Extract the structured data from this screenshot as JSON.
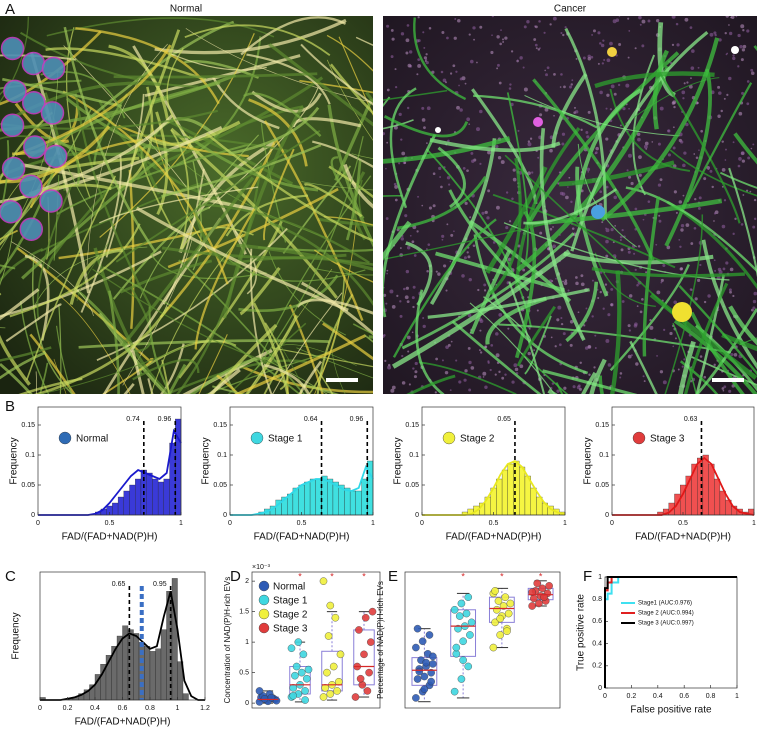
{
  "panel_labels": [
    "A",
    "B",
    "C",
    "D",
    "E",
    "F"
  ],
  "image_titles": [
    "Normal",
    "Cancer"
  ],
  "chart_data": [
    {
      "type": "histogram",
      "name": "Normal",
      "legend_color": "#2e6bb5",
      "color": "#3a3ad8",
      "fit_color": "#1a1acc",
      "xlabel": "FAD/(FAD+NAD(P)H)",
      "ylabel": "Frequency",
      "xlim": [
        0,
        1
      ],
      "xticks": [
        0,
        0.5,
        1
      ],
      "ylim": [
        0,
        0.18
      ],
      "yticks": [
        0,
        0.05,
        0.1,
        0.15
      ],
      "bins": [
        0,
        0.04,
        0.08,
        0.12,
        0.16,
        0.2,
        0.24,
        0.28,
        0.32,
        0.36,
        0.4,
        0.44,
        0.48,
        0.52,
        0.56,
        0.6,
        0.64,
        0.68,
        0.72,
        0.76,
        0.8,
        0.84,
        0.88,
        0.92,
        0.96,
        1
      ],
      "values": [
        0,
        0,
        0,
        0,
        0,
        0,
        0,
        0,
        0,
        0,
        0.005,
        0.01,
        0.015,
        0.02,
        0.03,
        0.04,
        0.05,
        0.06,
        0.075,
        0.07,
        0.06,
        0.055,
        0.06,
        0.12,
        0.16
      ],
      "fit": {
        "x": [
          0,
          0.05,
          0.1,
          0.15,
          0.2,
          0.25,
          0.3,
          0.35,
          0.4,
          0.45,
          0.5,
          0.55,
          0.6,
          0.65,
          0.7,
          0.75,
          0.8,
          0.85,
          0.9,
          0.95,
          1
        ],
        "values": [
          0,
          0,
          0,
          0,
          0,
          0,
          0,
          0,
          0.002,
          0.008,
          0.02,
          0.035,
          0.05,
          0.065,
          0.075,
          0.07,
          0.065,
          0.06,
          0.07,
          0.14,
          0.12
        ]
      },
      "marker_lines": [
        {
          "value": 0.74,
          "label": "0.74"
        },
        {
          "value": 0.96,
          "label": "0.96"
        }
      ]
    },
    {
      "type": "histogram",
      "name": "Stage 1",
      "legend_color": "#3fd7e0",
      "color": "#40e0e0",
      "fit_color": "#2fd8e8",
      "xlabel": "FAD/(FAD+NAD(P)H)",
      "ylabel": "Frequency",
      "xlim": [
        0,
        1
      ],
      "xticks": [
        0,
        0.5,
        1
      ],
      "ylim": [
        0,
        0.18
      ],
      "yticks": [
        0,
        0.05,
        0.1,
        0.15
      ],
      "bins": [
        0,
        0.04,
        0.08,
        0.12,
        0.16,
        0.2,
        0.24,
        0.28,
        0.32,
        0.36,
        0.4,
        0.44,
        0.48,
        0.52,
        0.56,
        0.6,
        0.64,
        0.68,
        0.72,
        0.76,
        0.8,
        0.84,
        0.88,
        0.92,
        0.96,
        1
      ],
      "values": [
        0,
        0,
        0,
        0,
        0,
        0.005,
        0.01,
        0.015,
        0.025,
        0.03,
        0.035,
        0.045,
        0.05,
        0.055,
        0.06,
        0.06,
        0.065,
        0.06,
        0.055,
        0.05,
        0.045,
        0.04,
        0.04,
        0.06,
        0.09
      ],
      "fit": {
        "x": [
          0,
          0.05,
          0.1,
          0.15,
          0.2,
          0.25,
          0.3,
          0.35,
          0.4,
          0.45,
          0.5,
          0.55,
          0.6,
          0.65,
          0.7,
          0.75,
          0.8,
          0.85,
          0.9,
          0.95,
          1
        ],
        "values": [
          0,
          0,
          0,
          0,
          0.002,
          0.005,
          0.01,
          0.02,
          0.03,
          0.04,
          0.05,
          0.055,
          0.06,
          0.06,
          0.055,
          0.048,
          0.042,
          0.04,
          0.045,
          0.08,
          0.06
        ]
      },
      "marker_lines": [
        {
          "value": 0.64,
          "label": "0.64"
        },
        {
          "value": 0.96,
          "label": "0.96"
        }
      ]
    },
    {
      "type": "histogram",
      "name": "Stage 2",
      "legend_color": "#f0f03c",
      "color": "#f5f542",
      "fit_color": "#e8e820",
      "xlabel": "FAD/(FAD+NAD(P)H)",
      "ylabel": "Frequency",
      "xlim": [
        0,
        1
      ],
      "xticks": [
        0,
        0.5,
        1
      ],
      "ylim": [
        0,
        0.18
      ],
      "yticks": [
        0,
        0.05,
        0.1,
        0.15
      ],
      "bins": [
        0,
        0.04,
        0.08,
        0.12,
        0.16,
        0.2,
        0.24,
        0.28,
        0.32,
        0.36,
        0.4,
        0.44,
        0.48,
        0.52,
        0.56,
        0.6,
        0.64,
        0.68,
        0.72,
        0.76,
        0.8,
        0.84,
        0.88,
        0.92,
        0.96,
        1
      ],
      "values": [
        0,
        0,
        0,
        0,
        0,
        0,
        0,
        0.005,
        0.01,
        0.015,
        0.02,
        0.03,
        0.045,
        0.06,
        0.075,
        0.085,
        0.09,
        0.08,
        0.065,
        0.045,
        0.03,
        0.02,
        0.015,
        0.01,
        0.005
      ],
      "fit": {
        "x": [
          0,
          0.05,
          0.1,
          0.15,
          0.2,
          0.25,
          0.3,
          0.35,
          0.4,
          0.45,
          0.5,
          0.55,
          0.6,
          0.65,
          0.7,
          0.75,
          0.8,
          0.85,
          0.9,
          0.95,
          1
        ],
        "values": [
          0,
          0,
          0,
          0,
          0,
          0,
          0,
          0.002,
          0.01,
          0.025,
          0.045,
          0.068,
          0.085,
          0.09,
          0.08,
          0.06,
          0.04,
          0.022,
          0.01,
          0.004,
          0.001
        ]
      },
      "marker_lines": [
        {
          "value": 0.65,
          "label": "0.65"
        }
      ]
    },
    {
      "type": "histogram",
      "name": "Stage 3",
      "legend_color": "#e03c3c",
      "color": "#f05050",
      "fit_color": "#e01818",
      "xlabel": "FAD/(FAD+NAD(P)H)",
      "ylabel": "Frequency",
      "xlim": [
        0,
        1
      ],
      "xticks": [
        0,
        0.5,
        1
      ],
      "ylim": [
        0,
        0.18
      ],
      "yticks": [
        0,
        0.05,
        0.1,
        0.15
      ],
      "bins": [
        0,
        0.04,
        0.08,
        0.12,
        0.16,
        0.2,
        0.24,
        0.28,
        0.32,
        0.36,
        0.4,
        0.44,
        0.48,
        0.52,
        0.56,
        0.6,
        0.64,
        0.68,
        0.72,
        0.76,
        0.8,
        0.84,
        0.88,
        0.92,
        0.96,
        1
      ],
      "values": [
        0,
        0,
        0,
        0,
        0,
        0,
        0,
        0,
        0.005,
        0.01,
        0.02,
        0.035,
        0.05,
        0.065,
        0.085,
        0.095,
        0.1,
        0.085,
        0.06,
        0.04,
        0.025,
        0.015,
        0.01,
        0.005,
        0.01
      ],
      "fit": {
        "x": [
          0,
          0.05,
          0.1,
          0.15,
          0.2,
          0.25,
          0.3,
          0.35,
          0.4,
          0.45,
          0.5,
          0.55,
          0.6,
          0.65,
          0.7,
          0.75,
          0.8,
          0.85,
          0.9,
          0.95,
          1
        ],
        "values": [
          0,
          0,
          0,
          0,
          0,
          0,
          0,
          0,
          0.004,
          0.015,
          0.035,
          0.06,
          0.085,
          0.095,
          0.085,
          0.06,
          0.035,
          0.015,
          0.005,
          0.002,
          0
        ]
      },
      "marker_lines": [
        {
          "value": 0.63,
          "label": "0.63"
        }
      ]
    },
    {
      "type": "histogram",
      "color": "#6a6a6a",
      "fit_color": "#000000",
      "xlabel": "FAD/(FAD+NAD(P)H)",
      "ylabel": "Frequency",
      "xlim": [
        0,
        1.2
      ],
      "xticks": [
        0,
        0.2,
        0.4,
        0.6,
        0.8,
        1,
        1.2
      ],
      "ylim": [
        0,
        1
      ],
      "bins": [
        0,
        0.04,
        0.08,
        0.12,
        0.16,
        0.2,
        0.24,
        0.28,
        0.32,
        0.36,
        0.4,
        0.44,
        0.48,
        0.52,
        0.56,
        0.6,
        0.64,
        0.68,
        0.72,
        0.76,
        0.8,
        0.84,
        0.88,
        0.92,
        0.96,
        1,
        1.04,
        1.08
      ],
      "values": [
        0.02,
        0,
        0,
        0,
        0,
        0.01,
        0.02,
        0.05,
        0.08,
        0.12,
        0.2,
        0.28,
        0.35,
        0.42,
        0.5,
        0.58,
        0.55,
        0.52,
        0.45,
        0.42,
        0.38,
        0.4,
        0.55,
        0.85,
        0.95,
        0.3,
        0.05
      ],
      "fit": {
        "x": [
          0,
          0.05,
          0.1,
          0.15,
          0.2,
          0.25,
          0.3,
          0.35,
          0.4,
          0.45,
          0.5,
          0.55,
          0.6,
          0.65,
          0.7,
          0.75,
          0.8,
          0.85,
          0.9,
          0.95,
          1,
          1.05,
          1.1,
          1.15,
          1.2
        ],
        "values": [
          0,
          0,
          0,
          0,
          0.01,
          0.02,
          0.04,
          0.07,
          0.12,
          0.2,
          0.3,
          0.4,
          0.48,
          0.52,
          0.5,
          0.45,
          0.4,
          0.42,
          0.65,
          0.85,
          0.55,
          0.15,
          0.03,
          0,
          0
        ]
      },
      "marker_lines": [
        {
          "value": 0.65,
          "label": "0.65"
        },
        {
          "value": 0.95,
          "label": "0.95"
        }
      ],
      "mean_line": {
        "value": 0.74,
        "color": "#3a6fc4"
      }
    },
    {
      "type": "box",
      "ylabel": "Concentration of NAD(P)H-rich EVs",
      "axis_multiplier": "×10⁻³",
      "categories": [
        "Normal",
        "Stage 1",
        "Stage 2",
        "Stage 3"
      ],
      "colors": [
        "#2e5bb5",
        "#3fd7e0",
        "#f0f03c",
        "#e03c3c"
      ],
      "ylim": [
        -0.08,
        2.15
      ],
      "yticks": [
        0,
        0.5,
        1,
        1.5,
        2
      ],
      "legend": true,
      "points": [
        [
          0.02,
          0.05,
          0.08,
          0.1,
          0.03,
          0.06,
          0.12,
          0.15,
          0.04,
          0.07,
          0.09,
          0.2
        ],
        [
          0.1,
          0.15,
          0.2,
          0.25,
          0.3,
          0.4,
          0.45,
          0.5,
          0.55,
          0.6,
          0.8,
          0.9,
          1.0,
          0.05,
          0.12
        ],
        [
          0.1,
          0.15,
          0.2,
          0.25,
          0.3,
          0.35,
          0.5,
          0.6,
          0.8,
          1.1,
          1.4,
          2.0,
          1.6
        ],
        [
          0.1,
          0.3,
          0.5,
          0.6,
          0.8,
          1.0,
          1.2,
          1.4,
          1.5,
          0.4,
          0.2
        ]
      ],
      "boxes": [
        {
          "q1": 0.03,
          "median": 0.06,
          "q3": 0.1,
          "whisker_low": 0,
          "whisker_high": 0.2
        },
        {
          "q1": 0.15,
          "median": 0.3,
          "q3": 0.6,
          "whisker_low": 0.02,
          "whisker_high": 1.0
        },
        {
          "q1": 0.2,
          "median": 0.3,
          "q3": 0.85,
          "whisker_low": 0.05,
          "whisker_high": 1.5
        },
        {
          "q1": 0.3,
          "median": 0.6,
          "q3": 1.2,
          "whisker_low": 0.1,
          "whisker_high": 1.5
        }
      ],
      "box_color": "#8a7fd8",
      "median_color": "#d62728",
      "significance": [
        null,
        "*",
        "*",
        "*"
      ],
      "significance_color": "#d62728"
    },
    {
      "type": "box",
      "ylabel": "Percentage of NAD(P)H-rich EVs",
      "colors": [
        "#2e5bb5",
        "#3fd7e0",
        "#f0f03c",
        "#e03c3c"
      ],
      "ylim": [
        -0.03,
        1.05
      ],
      "points": [
        [
          0.05,
          0.1,
          0.15,
          0.2,
          0.22,
          0.25,
          0.28,
          0.3,
          0.32,
          0.35,
          0.4,
          0.45,
          0.5,
          0.55,
          0.6,
          0.12,
          0.18,
          0.26,
          0.33,
          0.38
        ],
        [
          0.1,
          0.2,
          0.3,
          0.4,
          0.5,
          0.55,
          0.6,
          0.62,
          0.65,
          0.7,
          0.72,
          0.75,
          0.8,
          0.85,
          0.45,
          0.35
        ],
        [
          0.45,
          0.55,
          0.6,
          0.65,
          0.7,
          0.72,
          0.75,
          0.78,
          0.8,
          0.82,
          0.85,
          0.88,
          0.68,
          0.58,
          0.9
        ],
        [
          0.78,
          0.8,
          0.82,
          0.84,
          0.86,
          0.88,
          0.9,
          0.92,
          0.94,
          0.96,
          0.85,
          0.89
        ]
      ],
      "boxes": [
        {
          "q1": 0.15,
          "median": 0.27,
          "q3": 0.37,
          "whisker_low": 0.02,
          "whisker_high": 0.6
        },
        {
          "q1": 0.38,
          "median": 0.62,
          "q3": 0.75,
          "whisker_low": 0.05,
          "whisker_high": 0.88
        },
        {
          "q1": 0.65,
          "median": 0.76,
          "q3": 0.85,
          "whisker_low": 0.45,
          "whisker_high": 0.92
        },
        {
          "q1": 0.83,
          "median": 0.87,
          "q3": 0.92,
          "whisker_low": 0.78,
          "whisker_high": 0.98
        }
      ],
      "box_color": "#8a7fd8",
      "median_color": "#d62728",
      "significance": [
        null,
        "*",
        "*",
        "*"
      ],
      "significance_color": "#d62728"
    },
    {
      "type": "line",
      "xlabel": "False positive rate",
      "ylabel": "True positive rate",
      "xlim": [
        0,
        1
      ],
      "ylim": [
        0,
        1
      ],
      "xticks": [
        0,
        0.2,
        0.4,
        0.6,
        0.8,
        1
      ],
      "yticks": [
        0,
        0.2,
        0.4,
        0.6,
        0.8,
        1
      ],
      "series": [
        {
          "name": "Stage1 (AUC:0.976)",
          "color": "#3fe0f0",
          "x": [
            0,
            0,
            0.02,
            0.02,
            0.05,
            0.05,
            0.1,
            0.1,
            1
          ],
          "values": [
            0,
            0.8,
            0.8,
            0.85,
            0.85,
            0.95,
            0.95,
            1,
            1
          ]
        },
        {
          "name": "Stage 2 (AUC:0.994)",
          "color": "#e02020",
          "x": [
            0,
            0,
            0.02,
            0.02,
            0.05,
            0.05,
            1
          ],
          "values": [
            0,
            0.88,
            0.88,
            0.95,
            0.95,
            1,
            1
          ]
        },
        {
          "name": "Stage 3 (AUC:0.997)",
          "color": "#000000",
          "x": [
            0,
            0,
            0.02,
            0.02,
            1
          ],
          "values": [
            0,
            0.9,
            0.9,
            1,
            1
          ]
        }
      ]
    }
  ]
}
